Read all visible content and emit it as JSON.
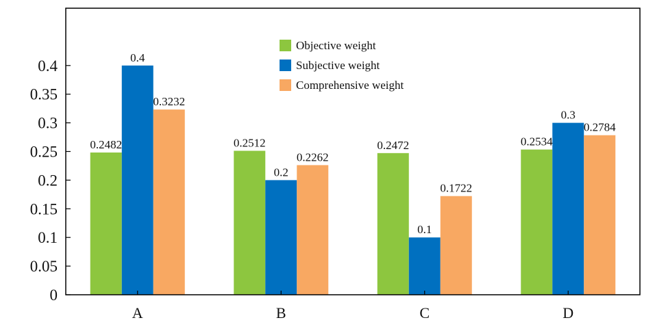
{
  "chart_data": {
    "type": "bar",
    "categories": [
      "A",
      "B",
      "C",
      "D"
    ],
    "series": [
      {
        "name": "Objective weight",
        "color": "#8DC63F",
        "values": [
          0.2482,
          0.2512,
          0.2472,
          0.2534
        ],
        "labels": [
          "0.2482",
          "0.2512",
          "0.2472",
          "0.2534"
        ]
      },
      {
        "name": "Subjective weight",
        "color": "#0070C0",
        "values": [
          0.4,
          0.2,
          0.1,
          0.3
        ],
        "labels": [
          "0.4",
          "0.2",
          "0.1",
          "0.3"
        ]
      },
      {
        "name": "Comprehensive weight",
        "color": "#F8A862",
        "values": [
          0.3232,
          0.2262,
          0.1722,
          0.2784
        ],
        "labels": [
          "0.3232",
          "0.2262",
          "0.1722",
          "0.2784"
        ]
      }
    ],
    "yticks": [
      "0",
      "0.05",
      "0.1",
      "0.15",
      "0.2",
      "0.25",
      "0.3",
      "0.35",
      "0.4"
    ],
    "ylim": [
      0,
      0.5
    ],
    "grid": false,
    "legend_position": "top-center"
  }
}
